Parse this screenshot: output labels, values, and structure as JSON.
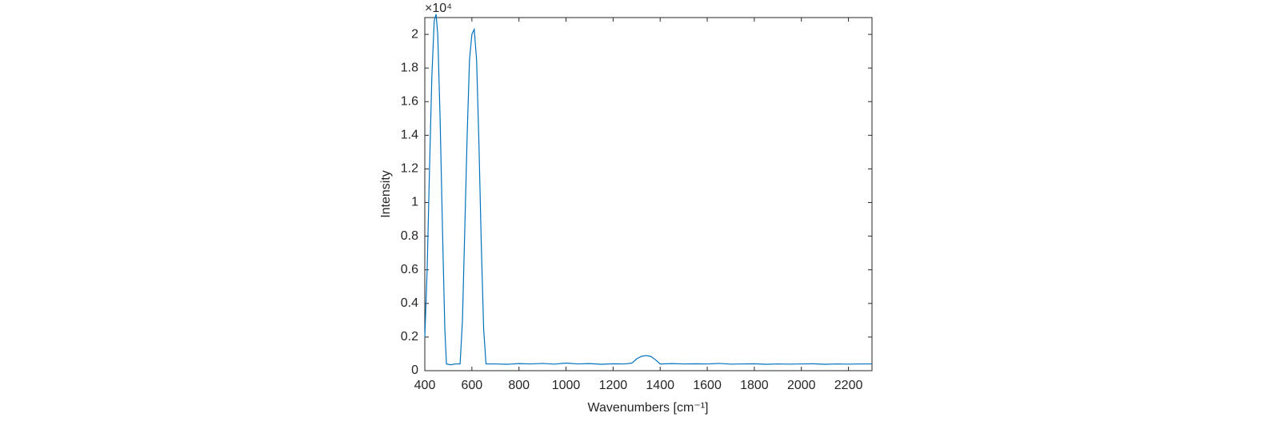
{
  "chart_data": {
    "type": "line",
    "x_label": "Wavenumbers [cm⁻¹]",
    "y_label": "Intensity",
    "y_multiplier": "×10⁴",
    "xlim": [
      400,
      2300
    ],
    "ylim": [
      0,
      2.1
    ],
    "xticks": [
      400,
      600,
      800,
      1000,
      1200,
      1400,
      1600,
      1800,
      2000,
      2200
    ],
    "yticks": [
      0,
      0.2,
      0.4,
      0.6,
      0.8,
      1,
      1.2,
      1.4,
      1.6,
      1.8,
      2
    ],
    "grid": false,
    "series": [
      {
        "color": "#0072bd",
        "x": [
          400,
          410,
          420,
          430,
          440,
          448,
          455,
          465,
          475,
          485,
          492,
          510,
          530,
          550,
          560,
          570,
          580,
          590,
          600,
          610,
          620,
          630,
          640,
          650,
          660,
          700,
          750,
          800,
          850,
          900,
          950,
          1000,
          1050,
          1100,
          1150,
          1200,
          1250,
          1280,
          1300,
          1320,
          1340,
          1360,
          1380,
          1400,
          1450,
          1500,
          1550,
          1600,
          1650,
          1700,
          1750,
          1800,
          1850,
          1900,
          1950,
          2000,
          2050,
          2100,
          2150,
          2200,
          2250,
          2300
        ],
        "values": [
          0.2,
          0.6,
          1.2,
          1.75,
          2.08,
          2.12,
          2.0,
          1.5,
          0.85,
          0.25,
          0.04,
          0.035,
          0.04,
          0.04,
          0.3,
          0.85,
          1.4,
          1.85,
          2.0,
          2.03,
          1.85,
          1.35,
          0.75,
          0.25,
          0.04,
          0.04,
          0.038,
          0.042,
          0.04,
          0.043,
          0.039,
          0.045,
          0.04,
          0.042,
          0.038,
          0.041,
          0.04,
          0.045,
          0.07,
          0.085,
          0.09,
          0.085,
          0.065,
          0.04,
          0.042,
          0.04,
          0.041,
          0.04,
          0.043,
          0.039,
          0.04,
          0.041,
          0.038,
          0.04,
          0.039,
          0.04,
          0.041,
          0.038,
          0.04,
          0.039,
          0.04,
          0.04
        ]
      }
    ]
  }
}
